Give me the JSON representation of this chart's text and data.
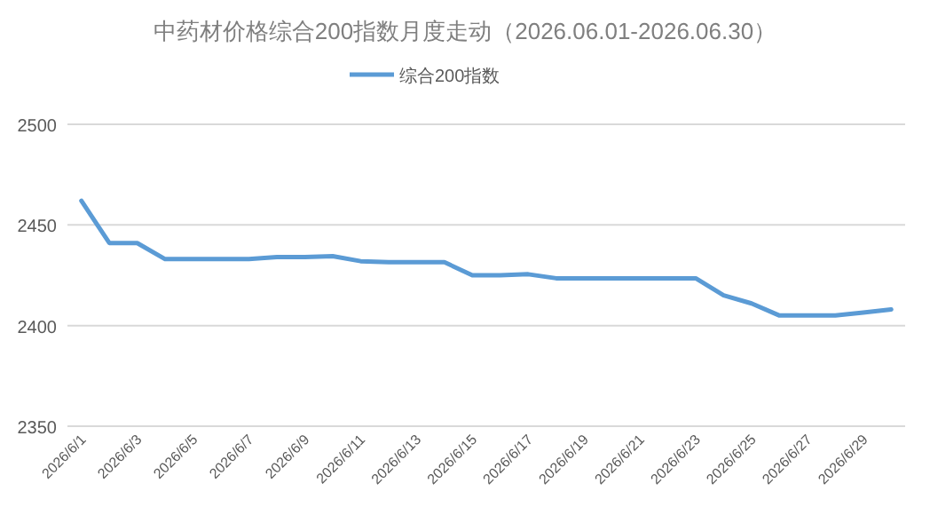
{
  "chart_data": {
    "type": "line",
    "title": "中药材价格综合200指数月度走动（2026.06.01-2026.06.30）",
    "categories": [
      "2026/6/1",
      null,
      "2026/6/3",
      null,
      "2026/6/5",
      null,
      "2026/6/7",
      null,
      "2026/6/9",
      null,
      "2026/6/11",
      null,
      "2026/6/13",
      null,
      "2026/6/15",
      null,
      "2026/6/17",
      null,
      "2026/6/19",
      null,
      "2026/6/21",
      null,
      "2026/6/23",
      null,
      "2026/6/25",
      null,
      "2026/6/27",
      null,
      "2026/6/29",
      null
    ],
    "series": [
      {
        "name": "综合200指数",
        "color": "#5b9bd5",
        "values": [
          2462,
          2441,
          2441,
          2433,
          2433,
          2433,
          2433,
          2434,
          2434,
          2434.5,
          2432,
          2431.5,
          2431.5,
          2431.5,
          2425,
          2425,
          2425.5,
          2423.5,
          2423.5,
          2423.5,
          2423.5,
          2423.5,
          2423.5,
          2415,
          2411,
          2405,
          2405,
          2405,
          2406.5,
          2408
        ]
      }
    ],
    "ylim": [
      2350,
      2500
    ],
    "yticks": [
      2350,
      2400,
      2450,
      2500
    ],
    "grid": "y",
    "legend": "top",
    "marker": "none",
    "line_style": "solid"
  }
}
